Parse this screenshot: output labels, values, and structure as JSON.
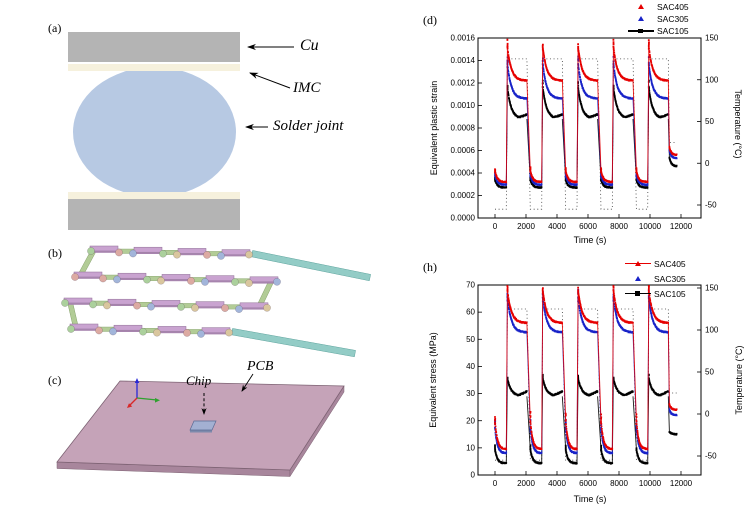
{
  "panels": {
    "a": {
      "label": "(a)",
      "cu_label": "Cu",
      "imc_label": "IMC",
      "solder_label": "Solder joint",
      "colors": {
        "cu": "#b4b4b4",
        "imc": "#f6f1dd",
        "solder": "#b7c9e3"
      }
    },
    "b": {
      "label": "(b)",
      "colors": {
        "trace_top": "#c9a3d0",
        "trace_top_edge": "#8f6f96",
        "trace_top_front": "#a784ae",
        "trace_bottom": "#b2cc96",
        "trace_bottom_edge": "#84a06b",
        "lead": "#93ccc6",
        "lead_edge": "#5fa49e",
        "ball_colors": [
          "#dcaaa2",
          "#a2b5da",
          "#abd09c",
          "#d9c69e"
        ]
      }
    },
    "c": {
      "label": "(c)",
      "chip_label": "Chip",
      "pcb_label": "PCB",
      "colors": {
        "pcb_top": "#c5a3b8",
        "pcb_side": "#a8869c",
        "pcb_edge": "#7d6273",
        "chip": "#a3b0d2",
        "axis_x": "#2fa12f",
        "axis_y": "#2828d8",
        "axis_z": "#d82828"
      }
    }
  },
  "chart_data": [
    {
      "id": "d",
      "type": "scatter",
      "panel_label": "(d)",
      "xlabel": "Time (s)",
      "ylabel_left": "Equivalent plastic strain",
      "ylabel_right": "Temperature (°C)",
      "xlim": [
        0,
        12000
      ],
      "xticks": [
        0,
        2000,
        4000,
        6000,
        8000,
        10000,
        12000
      ],
      "ylim_left": [
        0,
        0.0016
      ],
      "yticks_left": [
        "0.0000",
        "0.0002",
        "0.0004",
        "0.0006",
        "0.0008",
        "0.0010",
        "0.0012",
        "0.0014",
        "0.0016"
      ],
      "yticks_right": [
        150,
        100,
        50,
        0,
        -50
      ],
      "grid": false,
      "legend_position": "top-right-inside",
      "legend": [
        {
          "label": "SAC405",
          "color": "#e60000",
          "marker": "triangle",
          "line": false
        },
        {
          "label": "SAC305",
          "color": "#1822c8",
          "marker": "triangle",
          "line": false
        },
        {
          "label": "SAC105",
          "color": "#000000",
          "marker": "square",
          "line": true
        }
      ],
      "timing": {
        "period": 2280,
        "cold_end": 730,
        "ramp_up_end": 800,
        "hot_end": 2060,
        "cycles": 5,
        "final_start": 11250,
        "final_end": 11720
      },
      "temperature_profile": {
        "low_c": -55,
        "high_c": 125,
        "final_c": 25,
        "style": "dotted",
        "color": "#3c3c3c"
      },
      "series": [
        {
          "name": "SAC405",
          "color": "#e60000",
          "marker": "triangle",
          "cycle": {
            "cold_peak": 0.00042,
            "cold_end": 0.00032,
            "hot_peak": 0.00152,
            "hot_end": 0.00122
          },
          "final": {
            "start": 0.00063,
            "end": 0.00056
          }
        },
        {
          "name": "SAC305",
          "color": "#1822c8",
          "marker": "triangle",
          "cycle": {
            "cold_peak": 0.00038,
            "cold_end": 0.000295,
            "hot_peak": 0.00137,
            "hot_end": 0.00106
          },
          "final": {
            "start": 0.0006,
            "end": 0.00053
          }
        },
        {
          "name": "SAC105",
          "color": "#000000",
          "marker": "square",
          "cycle": {
            "cold_peak": 0.00034,
            "cold_end": 0.00027,
            "hot_peak": 0.00116,
            "hot_end": 0.00088,
            "hot_bump": 4e-05
          },
          "final": {
            "start": 0.00054,
            "end": 0.00046
          }
        }
      ]
    },
    {
      "id": "h",
      "type": "scatter",
      "panel_label": "(h)",
      "xlabel": "Time (s)",
      "ylabel_left": "Equivalent stress (MPa)",
      "ylabel_right": "Temperature (°C)",
      "xlim": [
        0,
        12000
      ],
      "xticks": [
        0,
        2000,
        4000,
        6000,
        8000,
        10000,
        12000
      ],
      "ylim_left": [
        0,
        70
      ],
      "yticks_left": [
        "0",
        "10",
        "20",
        "30",
        "40",
        "50",
        "60",
        "70"
      ],
      "yticks_right": [
        150,
        100,
        50,
        0,
        -50
      ],
      "grid": false,
      "legend_position": "top-right-inside",
      "legend": [
        {
          "label": "SAC405",
          "color": "#e60000",
          "marker": "triangle",
          "line": true
        },
        {
          "label": "SAC305",
          "color": "#1822c8",
          "marker": "triangle",
          "line": false
        },
        {
          "label": "SAC105",
          "color": "#000000",
          "marker": "square",
          "line": true
        }
      ],
      "timing": {
        "period": 2280,
        "cold_end": 730,
        "ramp_up_end": 800,
        "hot_end": 2060,
        "cycles": 5,
        "final_start": 11250,
        "final_end": 11720
      },
      "temperature_profile": {
        "low_c": -55,
        "high_c": 125,
        "final_c": 25,
        "style": "dotted",
        "color": "#3c3c3c"
      },
      "series": [
        {
          "name": "SAC405",
          "color": "#e60000",
          "marker": "triangle",
          "cycle": {
            "cold_peak": 20,
            "cold_end": 9.5,
            "hot_peak": 68,
            "hot_end": 56
          },
          "final": {
            "start": 26,
            "end": 24
          }
        },
        {
          "name": "SAC305",
          "color": "#1822c8",
          "marker": "triangle",
          "cycle": {
            "cold_peak": 17.5,
            "cold_end": 8,
            "hot_peak": 65.5,
            "hot_end": 52.5
          },
          "final": {
            "start": 24,
            "end": 22
          }
        },
        {
          "name": "SAC105",
          "color": "#000000",
          "marker": "square",
          "cycle": {
            "cold_peak": 9.5,
            "cold_end": 4.3,
            "hot_peak": 35.5,
            "hot_end": 29,
            "hot_bump": 1.8
          },
          "final": {
            "start": 16,
            "end": 15
          }
        }
      ]
    }
  ]
}
